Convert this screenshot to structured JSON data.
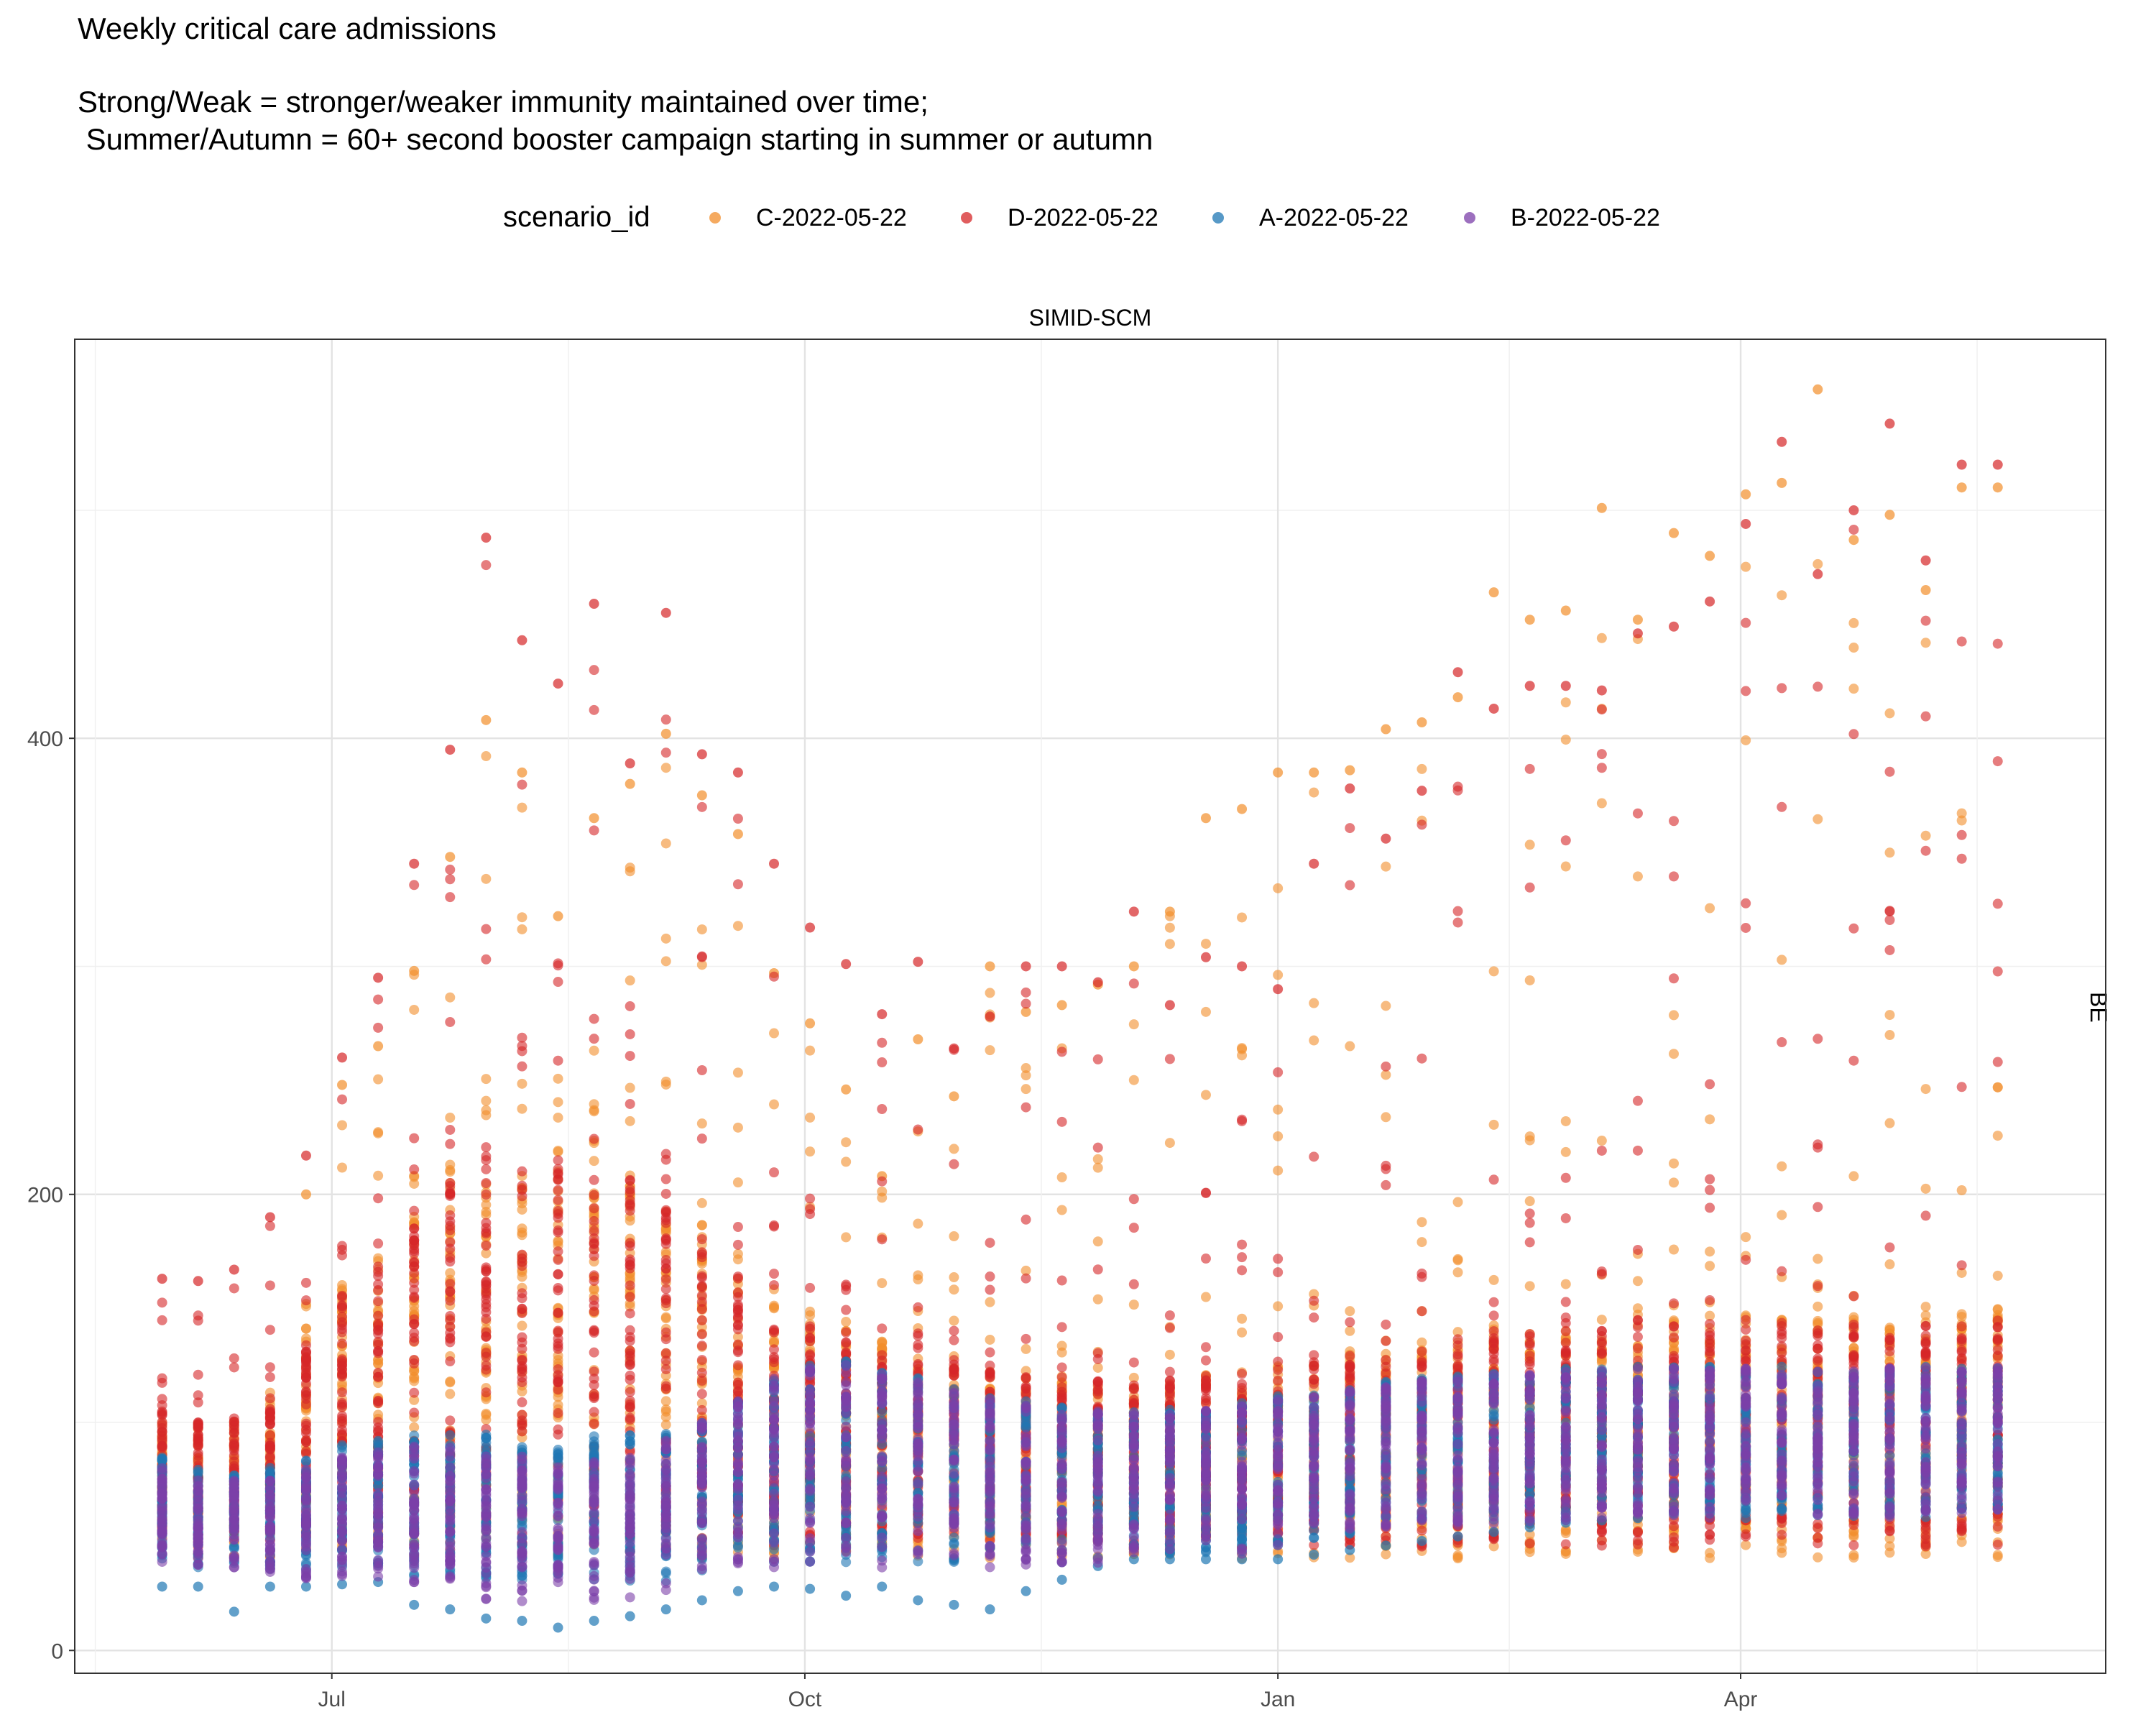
{
  "title": "Weekly critical care admissions",
  "subtitle": "Strong/Weak = stronger/weaker immunity maintained over time;\n Summer/Autumn = 60+ second booster campaign starting in summer or autumn",
  "legend": {
    "title": "scenario_id",
    "items": [
      {
        "label": "C-2022-05-22",
        "color": "#f28e2b"
      },
      {
        "label": "D-2022-05-22",
        "color": "#d62728"
      },
      {
        "label": "A-2022-05-22",
        "color": "#1f77b4"
      },
      {
        "label": "B-2022-05-22",
        "color": "#7b3fa8"
      }
    ]
  },
  "facet": {
    "strip": "SIMID-SCM",
    "row": "BE"
  },
  "chart_data": {
    "type": "scatter",
    "title": "Weekly critical care admissions",
    "xlabel": "",
    "ylabel": "",
    "x_start": "2022-05-22",
    "x_range_days": [
      -10,
      385
    ],
    "ylim": [
      -10,
      575
    ],
    "y_ticks": [
      0,
      200,
      400
    ],
    "x_ticks": [
      {
        "label": "Jul",
        "day": 40
      },
      {
        "label": "Oct",
        "day": 132
      },
      {
        "label": "Jan",
        "day": 224
      },
      {
        "label": "Apr",
        "day": 314
      }
    ],
    "grid": true,
    "week_days": [
      7,
      14,
      21,
      28,
      35,
      42,
      49,
      56,
      63,
      70,
      77,
      84,
      91,
      98,
      105,
      112,
      119,
      126,
      133,
      140,
      147,
      154,
      161,
      168,
      175,
      182,
      189,
      196,
      203,
      210,
      217,
      224,
      231,
      238,
      245,
      252,
      259,
      266,
      273,
      280,
      287,
      294,
      301,
      308,
      315,
      322,
      329,
      336,
      343,
      350,
      357,
      364
    ],
    "series": [
      {
        "name": "C-2022-05-22",
        "color": "#f28e2b",
        "band_low": [
          40,
          40,
          40,
          40,
          40,
          40,
          40,
          40,
          40,
          40,
          40,
          40,
          40,
          40,
          40,
          40,
          40,
          40,
          40,
          40,
          40,
          40,
          40,
          40,
          40,
          40,
          40,
          40,
          40,
          40,
          40,
          40,
          40,
          40,
          40,
          40,
          40,
          40,
          40,
          40,
          40,
          40,
          40,
          40,
          40,
          40,
          40,
          40,
          40,
          40,
          40,
          40
        ],
        "band_high": [
          100,
          100,
          100,
          115,
          130,
          155,
          168,
          190,
          205,
          210,
          208,
          210,
          215,
          205,
          195,
          185,
          170,
          150,
          145,
          140,
          135,
          130,
          128,
          125,
          122,
          120,
          118,
          115,
          118,
          120,
          122,
          125,
          125,
          128,
          130,
          132,
          135,
          138,
          140,
          142,
          145,
          145,
          145,
          145,
          145,
          145,
          145,
          145,
          145,
          145,
          145,
          148
        ],
        "upper_tail": [
          null,
          null,
          null,
          null,
          200,
          248,
          265,
          298,
          348,
          408,
          385,
          322,
          365,
          380,
          402,
          375,
          358,
          297,
          275,
          246,
          208,
          268,
          243,
          300,
          280,
          283,
          292,
          300,
          324,
          365,
          369,
          385,
          385,
          386,
          404,
          407,
          418,
          464,
          452,
          456,
          501,
          452,
          490,
          480,
          507,
          512,
          553,
          487,
          498,
          465,
          510,
          510
        ]
      },
      {
        "name": "D-2022-05-22",
        "color": "#d62728",
        "band_low": [
          45,
          45,
          45,
          45,
          45,
          45,
          45,
          45,
          45,
          45,
          45,
          45,
          45,
          45,
          45,
          45,
          45,
          45,
          45,
          45,
          45,
          45,
          45,
          45,
          45,
          45,
          45,
          45,
          45,
          45,
          45,
          45,
          45,
          45,
          45,
          45,
          45,
          45,
          45,
          45,
          45,
          45,
          45,
          45,
          45,
          45,
          45,
          45,
          45,
          45,
          45,
          45
        ],
        "band_high": [
          105,
          100,
          100,
          110,
          130,
          155,
          165,
          185,
          205,
          215,
          210,
          210,
          210,
          205,
          200,
          175,
          160,
          145,
          140,
          135,
          130,
          128,
          125,
          122,
          120,
          118,
          118,
          116,
          118,
          120,
          120,
          122,
          125,
          125,
          128,
          130,
          132,
          135,
          138,
          140,
          142,
          142,
          142,
          142,
          142,
          142,
          142,
          142,
          142,
          142,
          142,
          142
        ],
        "upper_tail": [
          163,
          162,
          167,
          190,
          217,
          260,
          295,
          345,
          395,
          488,
          443,
          424,
          459,
          389,
          455,
          393,
          385,
          345,
          317,
          301,
          279,
          302,
          264,
          278,
          300,
          300,
          293,
          324,
          283,
          304,
          300,
          290,
          345,
          378,
          356,
          377,
          429,
          413,
          423,
          423,
          421,
          446,
          449,
          460,
          494,
          530,
          472,
          500,
          538,
          478,
          520,
          520
        ]
      },
      {
        "name": "A-2022-05-22",
        "color": "#1f77b4",
        "band_low": [
          40,
          35,
          35,
          35,
          35,
          35,
          35,
          32,
          30,
          30,
          30,
          30,
          30,
          30,
          30,
          35,
          38,
          38,
          38,
          38,
          38,
          38,
          38,
          38,
          38,
          38,
          38,
          38,
          40,
          42,
          42,
          45,
          48,
          50,
          52,
          55,
          55,
          55,
          55,
          55,
          58,
          58,
          58,
          58,
          58,
          58,
          58,
          58,
          58,
          58,
          58,
          62
        ],
        "band_high": [
          85,
          80,
          78,
          80,
          85,
          90,
          92,
          95,
          95,
          95,
          92,
          90,
          95,
          95,
          95,
          100,
          110,
          120,
          125,
          128,
          125,
          120,
          115,
          112,
          110,
          108,
          105,
          105,
          106,
          108,
          110,
          112,
          114,
          116,
          118,
          120,
          121,
          122,
          123,
          124,
          125,
          125,
          125,
          125,
          125,
          125,
          125,
          125,
          125,
          125,
          125,
          125
        ],
        "lower_tail": [
          28,
          28,
          17,
          28,
          28,
          29,
          30,
          20,
          18,
          14,
          13,
          10,
          13,
          15,
          18,
          22,
          26,
          28,
          27,
          24,
          28,
          22,
          20,
          18,
          26,
          31,
          37,
          40,
          40,
          40,
          40,
          40,
          42,
          44,
          46,
          48,
          50,
          52,
          54,
          56,
          57,
          58,
          60,
          60,
          62,
          62,
          62,
          62,
          62,
          62,
          62,
          62
        ]
      },
      {
        "name": "B-2022-05-22",
        "color": "#7b3fa8",
        "band_low": [
          38,
          35,
          33,
          32,
          30,
          30,
          30,
          28,
          25,
          22,
          20,
          20,
          20,
          22,
          25,
          30,
          35,
          36,
          36,
          36,
          36,
          36,
          36,
          36,
          36,
          38,
          38,
          40,
          40,
          42,
          42,
          45,
          48,
          50,
          52,
          55,
          55,
          55,
          55,
          55,
          58,
          58,
          58,
          58,
          58,
          58,
          58,
          58,
          58,
          58,
          58,
          60
        ],
        "band_high": [
          80,
          78,
          75,
          76,
          80,
          85,
          88,
          90,
          90,
          88,
          85,
          82,
          85,
          88,
          92,
          100,
          110,
          120,
          125,
          126,
          122,
          118,
          114,
          110,
          108,
          106,
          105,
          104,
          105,
          106,
          108,
          110,
          112,
          114,
          116,
          118,
          120,
          121,
          122,
          123,
          124,
          124,
          124,
          124,
          124,
          124,
          124,
          124,
          124,
          124,
          124,
          124
        ]
      }
    ]
  }
}
